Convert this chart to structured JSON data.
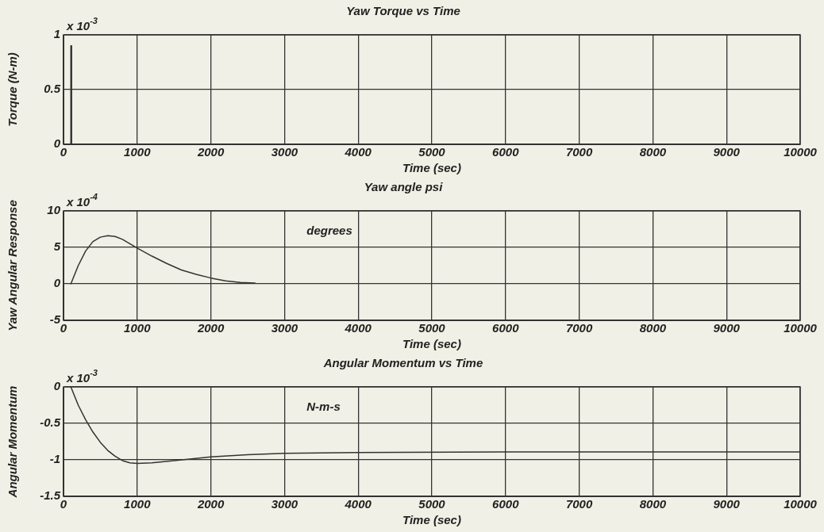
{
  "chart_data": [
    {
      "type": "line",
      "title": "Yaw Torque vs Time",
      "xlabel": "Time (sec)",
      "ylabel": "Torque (N-m)",
      "annotations": [
        "x 10$^{-3}$"
      ],
      "xlim": [
        0,
        10000
      ],
      "xticks": [
        0,
        1000,
        2000,
        3000,
        4000,
        5000,
        6000,
        7000,
        8000,
        9000,
        10000
      ],
      "ylim": [
        0,
        1
      ],
      "yticks": [
        0,
        0.5,
        1
      ],
      "grid": true,
      "legend": false,
      "marker": "none",
      "line_style": "solid",
      "series": [
        {
          "color": "#333333",
          "x": [
            0,
            100,
            100,
            110,
            110,
            10000
          ],
          "values": [
            0,
            0,
            0.9,
            0.9,
            0,
            0
          ]
        }
      ]
    },
    {
      "type": "line",
      "title": "Yaw angle psi",
      "xlabel": "Time (sec)",
      "ylabel": "Yaw Angular Response",
      "annotations": [
        "x 10$^{-4}$",
        "degrees"
      ],
      "xlim": [
        0,
        10000
      ],
      "xticks": [
        0,
        1000,
        2000,
        3000,
        4000,
        5000,
        6000,
        7000,
        8000,
        9000,
        10000
      ],
      "ylim": [
        -5,
        10
      ],
      "yticks": [
        -5,
        0,
        5,
        10
      ],
      "grid": true,
      "legend": false,
      "marker": "none",
      "line_style": "solid",
      "series": [
        {
          "color": "#333333",
          "x": [
            100,
            200,
            300,
            400,
            500,
            600,
            700,
            800,
            900,
            1000,
            1200,
            1400,
            1600,
            1800,
            2000,
            2200,
            2400,
            2600
          ],
          "values": [
            0,
            2.5,
            4.5,
            5.8,
            6.4,
            6.6,
            6.5,
            6.1,
            5.5,
            4.9,
            3.8,
            2.8,
            1.9,
            1.3,
            0.8,
            0.4,
            0.2,
            0.1
          ]
        }
      ]
    },
    {
      "type": "line",
      "title": "Angular Momentum vs Time",
      "xlabel": "Time (sec)",
      "ylabel": "Angular Momentum",
      "annotations": [
        "x 10$^{-3}$",
        "N-m-s"
      ],
      "xlim": [
        0,
        10000
      ],
      "xticks": [
        0,
        1000,
        2000,
        3000,
        4000,
        5000,
        6000,
        7000,
        8000,
        9000,
        10000
      ],
      "ylim": [
        -1.5,
        0
      ],
      "yticks": [
        -1.5,
        -1,
        -0.5,
        0
      ],
      "grid": true,
      "legend": false,
      "marker": "none",
      "line_style": "solid",
      "series": [
        {
          "color": "#333333",
          "x": [
            100,
            200,
            300,
            400,
            500,
            600,
            700,
            800,
            900,
            1000,
            1200,
            1500,
            2000,
            2500,
            3000,
            4000,
            6000,
            8000,
            10000
          ],
          "values": [
            0,
            -0.25,
            -0.45,
            -0.62,
            -0.76,
            -0.87,
            -0.95,
            -1.01,
            -1.04,
            -1.05,
            -1.04,
            -1.01,
            -0.96,
            -0.93,
            -0.91,
            -0.9,
            -0.89,
            -0.89,
            -0.89
          ]
        }
      ]
    }
  ]
}
